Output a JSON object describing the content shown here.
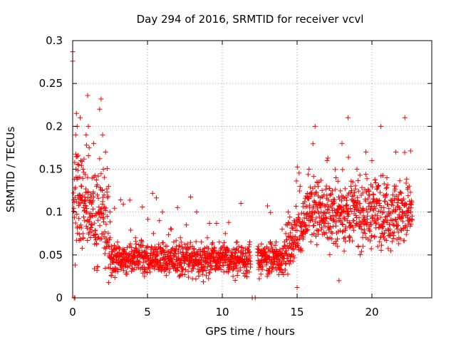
{
  "chart_data": {
    "type": "scatter",
    "title": "Day 294 of 2016, SRMTID for receiver vcvl",
    "xlabel": "GPS time / hours",
    "ylabel": "SRMTID / TECUs",
    "xlim": [
      0,
      24
    ],
    "ylim": [
      0,
      0.3
    ],
    "xticks": [
      0,
      5,
      10,
      15,
      20
    ],
    "xtick_labels": [
      "0",
      "5",
      "10",
      "15",
      "20"
    ],
    "yticks": [
      0,
      0.05,
      0.1,
      0.15,
      0.2,
      0.25,
      0.3
    ],
    "ytick_labels": [
      "0",
      "0.05",
      "0.1",
      "0.15",
      "0.2",
      "0.25",
      "0.3"
    ],
    "grid": true,
    "marker": "+",
    "color": "#ff0000",
    "series": [
      {
        "name": "SRMTID",
        "points": [
          [
            0.0,
            0.287
          ],
          [
            0.0,
            0.276
          ],
          [
            0.1,
            0.0
          ],
          [
            0.15,
            0.0
          ],
          [
            0.2,
            0.19
          ],
          [
            0.25,
            0.215
          ],
          [
            0.3,
            0.2
          ],
          [
            0.3,
            0.165
          ],
          [
            0.35,
            0.14
          ],
          [
            0.4,
            0.155
          ],
          [
            0.45,
            0.12
          ],
          [
            0.5,
            0.21
          ],
          [
            0.55,
            0.16
          ],
          [
            0.6,
            0.13
          ],
          [
            0.7,
            0.15
          ],
          [
            0.75,
            0.11
          ],
          [
            0.8,
            0.09
          ],
          [
            0.9,
            0.19
          ],
          [
            0.95,
            0.1
          ],
          [
            1.0,
            0.236
          ],
          [
            1.05,
            0.2
          ],
          [
            1.1,
            0.175
          ],
          [
            1.2,
            0.12
          ],
          [
            1.3,
            0.085
          ],
          [
            1.4,
            0.18
          ],
          [
            1.5,
            0.07
          ],
          [
            1.6,
            0.13
          ],
          [
            1.7,
            0.1
          ],
          [
            1.8,
            0.22
          ],
          [
            1.9,
            0.232
          ],
          [
            2.0,
            0.19
          ],
          [
            2.05,
            0.15
          ],
          [
            2.1,
            0.12
          ],
          [
            2.2,
            0.17
          ],
          [
            2.3,
            0.095
          ],
          [
            2.4,
            0.13
          ],
          [
            2.5,
            0.07
          ],
          [
            2.6,
            0.06
          ],
          [
            2.8,
            0.05
          ],
          [
            3.0,
            0.065
          ],
          [
            3.2,
            0.04
          ],
          [
            3.4,
            0.055
          ],
          [
            3.6,
            0.03
          ],
          [
            3.8,
            0.06
          ],
          [
            4.0,
            0.045
          ],
          [
            4.2,
            0.07
          ],
          [
            4.4,
            0.035
          ],
          [
            4.6,
            0.05
          ],
          [
            4.8,
            0.025
          ],
          [
            5.0,
            0.06
          ],
          [
            5.2,
            0.04
          ],
          [
            5.4,
            0.075
          ],
          [
            5.6,
            0.05
          ],
          [
            5.8,
            0.09
          ],
          [
            6.0,
            0.1
          ],
          [
            6.2,
            0.06
          ],
          [
            6.4,
            0.045
          ],
          [
            6.6,
            0.08
          ],
          [
            6.8,
            0.055
          ],
          [
            7.0,
            0.035
          ],
          [
            7.2,
            0.07
          ],
          [
            7.4,
            0.05
          ],
          [
            7.6,
            0.085
          ],
          [
            7.8,
            0.04
          ],
          [
            8.0,
            0.06
          ],
          [
            8.2,
            0.045
          ],
          [
            8.4,
            0.03
          ],
          [
            8.6,
            0.065
          ],
          [
            8.8,
            0.05
          ],
          [
            9.0,
            0.07
          ],
          [
            9.2,
            0.04
          ],
          [
            9.4,
            0.055
          ],
          [
            9.6,
            0.035
          ],
          [
            9.8,
            0.065
          ],
          [
            10.0,
            0.045
          ],
          [
            10.2,
            0.075
          ],
          [
            10.4,
            0.03
          ],
          [
            10.6,
            0.05
          ],
          [
            10.8,
            0.04
          ],
          [
            11.0,
            0.065
          ],
          [
            11.2,
            0.035
          ],
          [
            11.4,
            0.055
          ],
          [
            11.6,
            0.045
          ],
          [
            11.8,
            0.03
          ],
          [
            12.0,
            0.0
          ],
          [
            12.2,
            0.0
          ],
          [
            12.4,
            0.06
          ],
          [
            12.6,
            0.035
          ],
          [
            12.8,
            0.05
          ],
          [
            13.0,
            0.025
          ],
          [
            13.2,
            0.055
          ],
          [
            13.4,
            0.04
          ],
          [
            13.6,
            0.065
          ],
          [
            13.8,
            0.05
          ],
          [
            14.0,
            0.08
          ],
          [
            14.2,
            0.06
          ],
          [
            14.4,
            0.1
          ],
          [
            14.6,
            0.07
          ],
          [
            14.8,
            0.09
          ],
          [
            15.0,
            0.012
          ],
          [
            15.2,
            0.13
          ],
          [
            15.4,
            0.11
          ],
          [
            15.6,
            0.08
          ],
          [
            15.8,
            0.15
          ],
          [
            16.0,
            0.1
          ],
          [
            16.2,
            0.2
          ],
          [
            16.4,
            0.13
          ],
          [
            16.6,
            0.09
          ],
          [
            16.8,
            0.12
          ],
          [
            17.0,
            0.16
          ],
          [
            17.2,
            0.07
          ],
          [
            17.4,
            0.11
          ],
          [
            17.6,
            0.14
          ],
          [
            17.8,
            0.02
          ],
          [
            18.0,
            0.18
          ],
          [
            18.2,
            0.1
          ],
          [
            18.4,
            0.21
          ],
          [
            18.6,
            0.13
          ],
          [
            18.8,
            0.09
          ],
          [
            19.0,
            0.15
          ],
          [
            19.2,
            0.11
          ],
          [
            19.4,
            0.06
          ],
          [
            19.6,
            0.17
          ],
          [
            19.8,
            0.12
          ],
          [
            20.0,
            0.16
          ],
          [
            20.2,
            0.09
          ],
          [
            20.4,
            0.13
          ],
          [
            20.6,
            0.2
          ],
          [
            20.8,
            0.1
          ],
          [
            21.0,
            0.14
          ],
          [
            21.2,
            0.08
          ],
          [
            21.4,
            0.12
          ],
          [
            21.6,
            0.17
          ],
          [
            21.8,
            0.07
          ],
          [
            22.0,
            0.11
          ],
          [
            22.2,
            0.21
          ],
          [
            22.4,
            0.09
          ],
          [
            22.6,
            0.1
          ]
        ]
      }
    ],
    "dense_scatter_seed": 294
  }
}
